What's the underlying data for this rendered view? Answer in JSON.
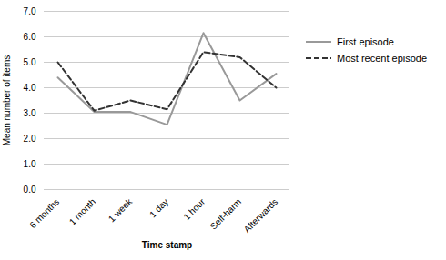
{
  "chart_data": {
    "type": "line",
    "xlabel": "Time stamp",
    "ylabel": "Mean number of items",
    "categories": [
      "6 months",
      "1 month",
      "1 week",
      "1 day",
      "1 hour",
      "Self-harm",
      "Afterwards"
    ],
    "series": [
      {
        "name": "First episode",
        "color": "#999999",
        "line_style": "solid",
        "values": [
          4.4,
          3.05,
          3.05,
          2.55,
          6.15,
          3.5,
          4.55
        ]
      },
      {
        "name": "Most recent episode",
        "color": "#333333",
        "line_style": "dashed",
        "values": [
          5.0,
          3.1,
          3.5,
          3.15,
          5.4,
          5.2,
          4.0
        ]
      }
    ],
    "ylim": [
      0,
      7
    ],
    "yticks": [
      0,
      1,
      2,
      3,
      4,
      5,
      6,
      7
    ],
    "grid": true,
    "legend": "right"
  }
}
